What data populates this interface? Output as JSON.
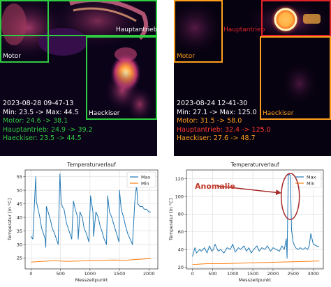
{
  "colors": {
    "roi_green": "#2ecc40",
    "roi_orange": "#ff9f1c",
    "roi_red": "#e0232a",
    "text_white": "#ffffff",
    "text_green": "#2ecc40",
    "text_orange": "#ff9f1c",
    "text_red": "#ff3b2f",
    "series_max": "#1f77b4",
    "series_min": "#ff7f0e",
    "annotation": "#a52a2a"
  },
  "thermal_left": {
    "roi_labels": {
      "motor": "Motor",
      "hauptantrieb": "Hauptantrieb",
      "haeckiser": "Haeckiser"
    },
    "stats": {
      "timestamp": "2023-08-28 09-47-13",
      "minmax": "Min: 23.5 -> Max: 44.5",
      "motor": "Motor: 24.6 -> 38.1",
      "hauptantrieb": "Hauptantrieb: 24.9 -> 39.2",
      "haeckiser": "Haeckiser: 23.5 -> 44.5"
    }
  },
  "thermal_right": {
    "roi_labels": {
      "motor": "Motor",
      "hauptantrieb": "Hauptantrieb",
      "haeckiser": "Haeckiser"
    },
    "stats": {
      "timestamp": "2023-08-24 12-41-30",
      "minmax": "Min: 27.1 -> Max: 125.0",
      "motor": "Motor: 31.5 -> 58.0",
      "hauptantrieb": "Hauptantrieb: 32.4 -> 125.0",
      "haeckiser": "Haeckiser: 27.6 -> 48.7"
    }
  },
  "chart_data": [
    {
      "type": "line",
      "title": "Temperaturverlauf",
      "xlabel": "Messzeitpunkt",
      "ylabel": "Temperatur [in °C]",
      "xlim": [
        -100,
        2150
      ],
      "ylim": [
        21,
        57.5
      ],
      "xticks": [
        0,
        500,
        1000,
        1500,
        2000
      ],
      "yticks": [
        25,
        30,
        35,
        40,
        45,
        50,
        55
      ],
      "grid": true,
      "legend_position": "top-right",
      "series": [
        {
          "name": "Max",
          "x": [
            0,
            30,
            60,
            80,
            90,
            110,
            130,
            150,
            180,
            210,
            240,
            250,
            260,
            290,
            330,
            360,
            400,
            430,
            460,
            490,
            510,
            530,
            560,
            600,
            630,
            660,
            690,
            720,
            750,
            790,
            800,
            830,
            870,
            900,
            940,
            980,
            1010,
            1050,
            1060,
            1100,
            1140,
            1170,
            1200,
            1240,
            1280,
            1300,
            1330,
            1370,
            1410,
            1450,
            1490,
            1500,
            1530,
            1570,
            1600,
            1640,
            1680,
            1720,
            1760,
            1790,
            1810,
            1850,
            1890,
            1920,
            1960,
            2000,
            2030
          ],
          "values": [
            33,
            32,
            46,
            55,
            46,
            44,
            42,
            40,
            36,
            34,
            32,
            29,
            44,
            42,
            39,
            36,
            34,
            32,
            30,
            56,
            46,
            44,
            43,
            38,
            36,
            34,
            32,
            46,
            43,
            40,
            32,
            42,
            40,
            36,
            34,
            31,
            48,
            42,
            33,
            42,
            40,
            37,
            35,
            32,
            30,
            48,
            42,
            40,
            37,
            34,
            31,
            50,
            43,
            40,
            37,
            34,
            32,
            30,
            46,
            52,
            45,
            44,
            44,
            43,
            43,
            42,
            42
          ]
        },
        {
          "name": "Min",
          "x": [
            0,
            200,
            400,
            600,
            800,
            1000,
            1200,
            1400,
            1600,
            1800,
            2030
          ],
          "values": [
            23.5,
            23.8,
            24.0,
            23.8,
            23.9,
            24.1,
            24.2,
            24.3,
            24.2,
            24.5,
            24.8
          ]
        }
      ]
    },
    {
      "type": "line",
      "title": "Temperaturverlauf",
      "xlabel": "Messzeitpunkt",
      "ylabel": "Temperatur [in °C]",
      "xlim": [
        -150,
        3250
      ],
      "ylim": [
        18,
        130
      ],
      "xticks": [
        0,
        500,
        1000,
        1500,
        2000,
        2500,
        3000
      ],
      "yticks": [
        20,
        40,
        60,
        80,
        100,
        120
      ],
      "grid": true,
      "legend_position": "top-right",
      "annotation": {
        "text": "Anomalie",
        "x": 2430,
        "y": 100
      },
      "series": [
        {
          "name": "Max",
          "x": [
            0,
            60,
            100,
            180,
            220,
            300,
            360,
            420,
            480,
            520,
            560,
            640,
            700,
            780,
            860,
            940,
            1000,
            1060,
            1140,
            1200,
            1280,
            1340,
            1400,
            1460,
            1520,
            1600,
            1660,
            1720,
            1800,
            1860,
            1940,
            2000,
            2080,
            2160,
            2220,
            2280,
            2330,
            2350,
            2380,
            2400,
            2430,
            2460,
            2500,
            2560,
            2620,
            2680,
            2740,
            2800,
            2860,
            2900,
            2940,
            3000,
            3080,
            3150
          ],
          "values": [
            32,
            42,
            36,
            40,
            38,
            42,
            36,
            44,
            38,
            40,
            46,
            38,
            40,
            36,
            42,
            40,
            46,
            37,
            42,
            40,
            44,
            38,
            42,
            36,
            40,
            44,
            38,
            42,
            40,
            44,
            38,
            42,
            40,
            38,
            44,
            40,
            52,
            30,
            124,
            125,
            124,
            62,
            48,
            42,
            40,
            42,
            40,
            42,
            40,
            44,
            58,
            46,
            44,
            43
          ]
        },
        {
          "name": "Min",
          "x": [
            0,
            400,
            800,
            1200,
            1600,
            2000,
            2400,
            2800,
            3150
          ],
          "values": [
            23,
            24,
            24,
            24.5,
            25,
            25.5,
            26,
            26.5,
            27
          ]
        }
      ]
    }
  ]
}
